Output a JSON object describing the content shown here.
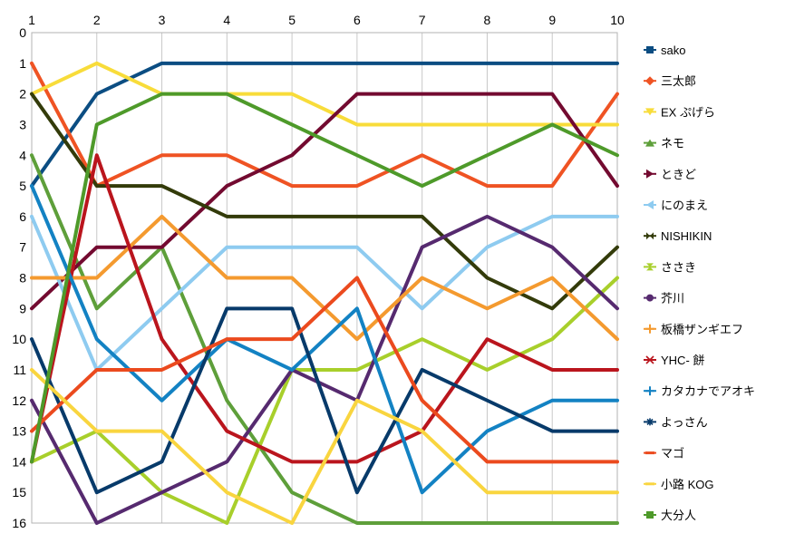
{
  "chart_data": {
    "type": "line",
    "title": "",
    "xlabel": "",
    "ylabel": "",
    "x": [
      1,
      2,
      3,
      4,
      5,
      6,
      7,
      8,
      9,
      10
    ],
    "x_axis_position": "top",
    "y_axis_reversed": true,
    "ylim": [
      0,
      16
    ],
    "yticks": [
      0,
      1,
      2,
      3,
      4,
      5,
      6,
      7,
      8,
      9,
      10,
      11,
      12,
      13,
      14,
      15,
      16
    ],
    "grid": "vertical",
    "legend_placement": "right",
    "series": [
      {
        "name": "sako",
        "color": "#0b4d82",
        "marker": "square",
        "values": [
          5,
          2,
          1,
          1,
          1,
          1,
          1,
          1,
          1,
          1
        ]
      },
      {
        "name": "三太郎",
        "color": "#ef5323",
        "marker": "diamond",
        "values": [
          1,
          5,
          4,
          4,
          5,
          5,
          4,
          5,
          5,
          2
        ]
      },
      {
        "name": "EX ぷげら",
        "color": "#f8dc3a",
        "marker": "triangle-down",
        "values": [
          2,
          1,
          2,
          2,
          2,
          3,
          3,
          3,
          3,
          3
        ]
      },
      {
        "name": "ネモ",
        "color": "#5e9f3a",
        "marker": "triangle-up",
        "values": [
          4,
          9,
          7,
          12,
          15,
          16,
          16,
          16,
          16,
          16
        ]
      },
      {
        "name": "ときど",
        "color": "#730a30",
        "marker": "triangle-right",
        "values": [
          9,
          7,
          7,
          5,
          4,
          2,
          2,
          2,
          2,
          5
        ]
      },
      {
        "name": "にのまえ",
        "color": "#8ecbf0",
        "marker": "triangle-left",
        "values": [
          6,
          11,
          9,
          7,
          7,
          7,
          9,
          7,
          6,
          6
        ]
      },
      {
        "name": "NISHIKIN",
        "color": "#333b0a",
        "marker": "bowtie",
        "values": [
          2,
          5,
          5,
          6,
          6,
          6,
          6,
          8,
          9,
          7
        ]
      },
      {
        "name": "ささき",
        "color": "#a8cf2b",
        "marker": "hourglass",
        "values": [
          14,
          13,
          15,
          16,
          11,
          11,
          10,
          11,
          10,
          8
        ]
      },
      {
        "name": "芥川",
        "color": "#562a6f",
        "marker": "circle",
        "values": [
          12,
          16,
          15,
          14,
          11,
          12,
          7,
          6,
          7,
          9
        ]
      },
      {
        "name": "板橋ザンギエフ",
        "color": "#f49a2f",
        "marker": "plus",
        "values": [
          8,
          8,
          6,
          8,
          8,
          10,
          8,
          9,
          8,
          10
        ]
      },
      {
        "name": "YHC- 餅",
        "color": "#ba151d",
        "marker": "x",
        "values": [
          14,
          4,
          10,
          13,
          14,
          14,
          13,
          10,
          11,
          11
        ]
      },
      {
        "name": "カタカナでアオキ",
        "color": "#1382c3",
        "marker": "plus",
        "values": [
          5,
          10,
          12,
          10,
          11,
          9,
          15,
          13,
          12,
          12
        ]
      },
      {
        "name": "よっさん",
        "color": "#073a6a",
        "marker": "asterisk",
        "values": [
          10,
          15,
          14,
          9,
          9,
          15,
          11,
          12,
          13,
          13
        ]
      },
      {
        "name": "マゴ",
        "color": "#eb4a1e",
        "marker": "dash",
        "values": [
          13,
          11,
          11,
          10,
          10,
          8,
          12,
          14,
          14,
          14
        ]
      },
      {
        "name": "小路 KOG",
        "color": "#f9d53f",
        "marker": "dash",
        "values": [
          11,
          13,
          13,
          15,
          16,
          12,
          13,
          15,
          15,
          15
        ]
      },
      {
        "name": "大分人",
        "color": "#4e9a2a",
        "marker": "square",
        "values": [
          14,
          3,
          2,
          2,
          3,
          4,
          5,
          4,
          3,
          4
        ]
      }
    ]
  }
}
